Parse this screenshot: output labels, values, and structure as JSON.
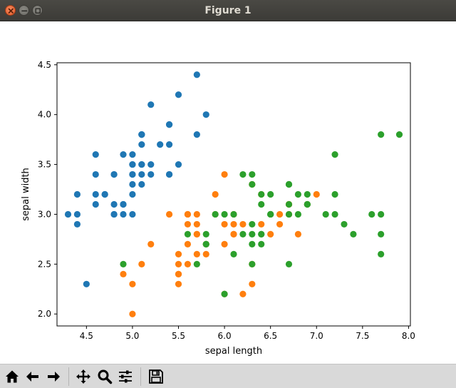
{
  "window": {
    "title": "Figure 1"
  },
  "toolbar": {
    "buttons": [
      {
        "name": "home",
        "icon": "home-icon"
      },
      {
        "name": "back",
        "icon": "arrow-left-icon"
      },
      {
        "name": "forward",
        "icon": "arrow-right-icon"
      },
      {
        "name": "pan",
        "icon": "move-icon"
      },
      {
        "name": "zoom",
        "icon": "magnifier-icon"
      },
      {
        "name": "configure-subplots",
        "icon": "sliders-icon"
      },
      {
        "name": "save",
        "icon": "floppy-disk-icon"
      }
    ]
  },
  "chart_data": {
    "type": "scatter",
    "title": "",
    "xlabel": "sepal length",
    "ylabel": "sepal width",
    "xlim": [
      4.18,
      8.02
    ],
    "ylim": [
      1.88,
      4.52
    ],
    "xticks": [
      "4.5",
      "5.0",
      "5.5",
      "6.0",
      "6.5",
      "7.0",
      "7.5",
      "8.0"
    ],
    "yticks": [
      "2.0",
      "2.5",
      "3.0",
      "3.5",
      "4.0",
      "4.5"
    ],
    "grid": false,
    "legend": "none",
    "series": [
      {
        "color": "#1f77b4",
        "x": [
          5.1,
          4.9,
          4.7,
          4.6,
          5.0,
          5.4,
          4.6,
          5.0,
          4.4,
          4.9,
          5.4,
          4.8,
          4.8,
          4.3,
          5.8,
          5.7,
          5.4,
          5.1,
          5.7,
          5.1,
          5.4,
          5.1,
          4.6,
          5.1,
          4.8,
          5.0,
          5.0,
          5.2,
          5.2,
          4.7,
          4.8,
          5.4,
          5.2,
          5.5,
          4.9,
          5.0,
          5.5,
          4.9,
          4.4,
          5.1,
          5.0,
          4.5,
          4.4,
          5.0,
          5.1,
          4.8,
          5.1,
          4.6,
          5.3,
          5.0
        ],
        "y": [
          3.5,
          3.0,
          3.2,
          3.1,
          3.6,
          3.9,
          3.4,
          3.4,
          2.9,
          3.1,
          3.7,
          3.4,
          3.0,
          3.0,
          4.0,
          4.4,
          3.9,
          3.5,
          3.8,
          3.8,
          3.4,
          3.7,
          3.6,
          3.3,
          3.4,
          3.0,
          3.4,
          3.5,
          3.4,
          3.2,
          3.1,
          3.4,
          4.1,
          4.2,
          3.1,
          3.2,
          3.5,
          3.6,
          3.0,
          3.4,
          3.5,
          2.3,
          3.2,
          3.5,
          3.8,
          3.0,
          3.8,
          3.2,
          3.7,
          3.3
        ]
      },
      {
        "color": "#ff7f0e",
        "x": [
          7.0,
          6.4,
          6.9,
          5.5,
          6.5,
          5.7,
          6.3,
          4.9,
          6.6,
          5.2,
          5.0,
          5.9,
          6.0,
          6.1,
          5.6,
          6.7,
          5.6,
          5.8,
          6.2,
          5.6,
          5.9,
          6.1,
          6.3,
          6.1,
          6.4,
          6.6,
          6.8,
          6.7,
          6.0,
          5.7,
          5.5,
          5.5,
          5.8,
          6.0,
          5.4,
          6.0,
          6.7,
          6.3,
          5.6,
          5.5,
          5.5,
          6.1,
          5.8,
          5.0,
          5.6,
          5.7,
          5.7,
          6.2,
          5.1,
          5.7
        ],
        "y": [
          3.2,
          3.2,
          3.1,
          2.3,
          2.8,
          2.8,
          3.3,
          2.4,
          2.9,
          2.7,
          2.0,
          3.0,
          2.2,
          2.9,
          2.9,
          3.1,
          3.0,
          2.7,
          2.2,
          2.5,
          3.2,
          2.8,
          2.5,
          2.8,
          2.9,
          3.0,
          2.8,
          3.0,
          2.9,
          2.6,
          2.4,
          2.4,
          2.7,
          2.7,
          3.0,
          3.4,
          3.1,
          2.3,
          3.0,
          2.5,
          2.6,
          3.0,
          2.6,
          2.3,
          2.7,
          3.0,
          2.9,
          2.9,
          2.5,
          2.8
        ]
      },
      {
        "color": "#2ca02c",
        "x": [
          6.3,
          5.8,
          7.1,
          6.3,
          6.5,
          7.6,
          4.9,
          7.3,
          6.7,
          7.2,
          6.5,
          6.4,
          6.8,
          5.7,
          5.8,
          6.4,
          6.5,
          7.7,
          7.7,
          6.0,
          6.9,
          5.6,
          7.7,
          6.3,
          6.7,
          7.2,
          6.2,
          6.1,
          6.4,
          7.2,
          7.4,
          7.9,
          6.4,
          6.3,
          6.1,
          7.7,
          6.3,
          6.4,
          6.0,
          6.9,
          6.7,
          6.9,
          5.8,
          6.8,
          6.7,
          6.7,
          6.3,
          6.5,
          6.2,
          5.9
        ],
        "y": [
          3.3,
          2.7,
          3.0,
          2.9,
          3.0,
          3.0,
          2.5,
          2.9,
          2.5,
          3.6,
          3.2,
          2.7,
          3.0,
          2.5,
          2.8,
          3.2,
          3.0,
          3.8,
          2.6,
          2.2,
          3.2,
          2.8,
          2.8,
          2.7,
          3.3,
          3.2,
          2.8,
          3.0,
          2.8,
          3.0,
          2.8,
          3.8,
          2.8,
          2.8,
          2.6,
          3.0,
          3.4,
          3.1,
          3.0,
          3.1,
          3.1,
          3.1,
          2.7,
          3.2,
          3.3,
          3.0,
          2.5,
          3.0,
          3.4,
          3.0
        ]
      }
    ]
  }
}
